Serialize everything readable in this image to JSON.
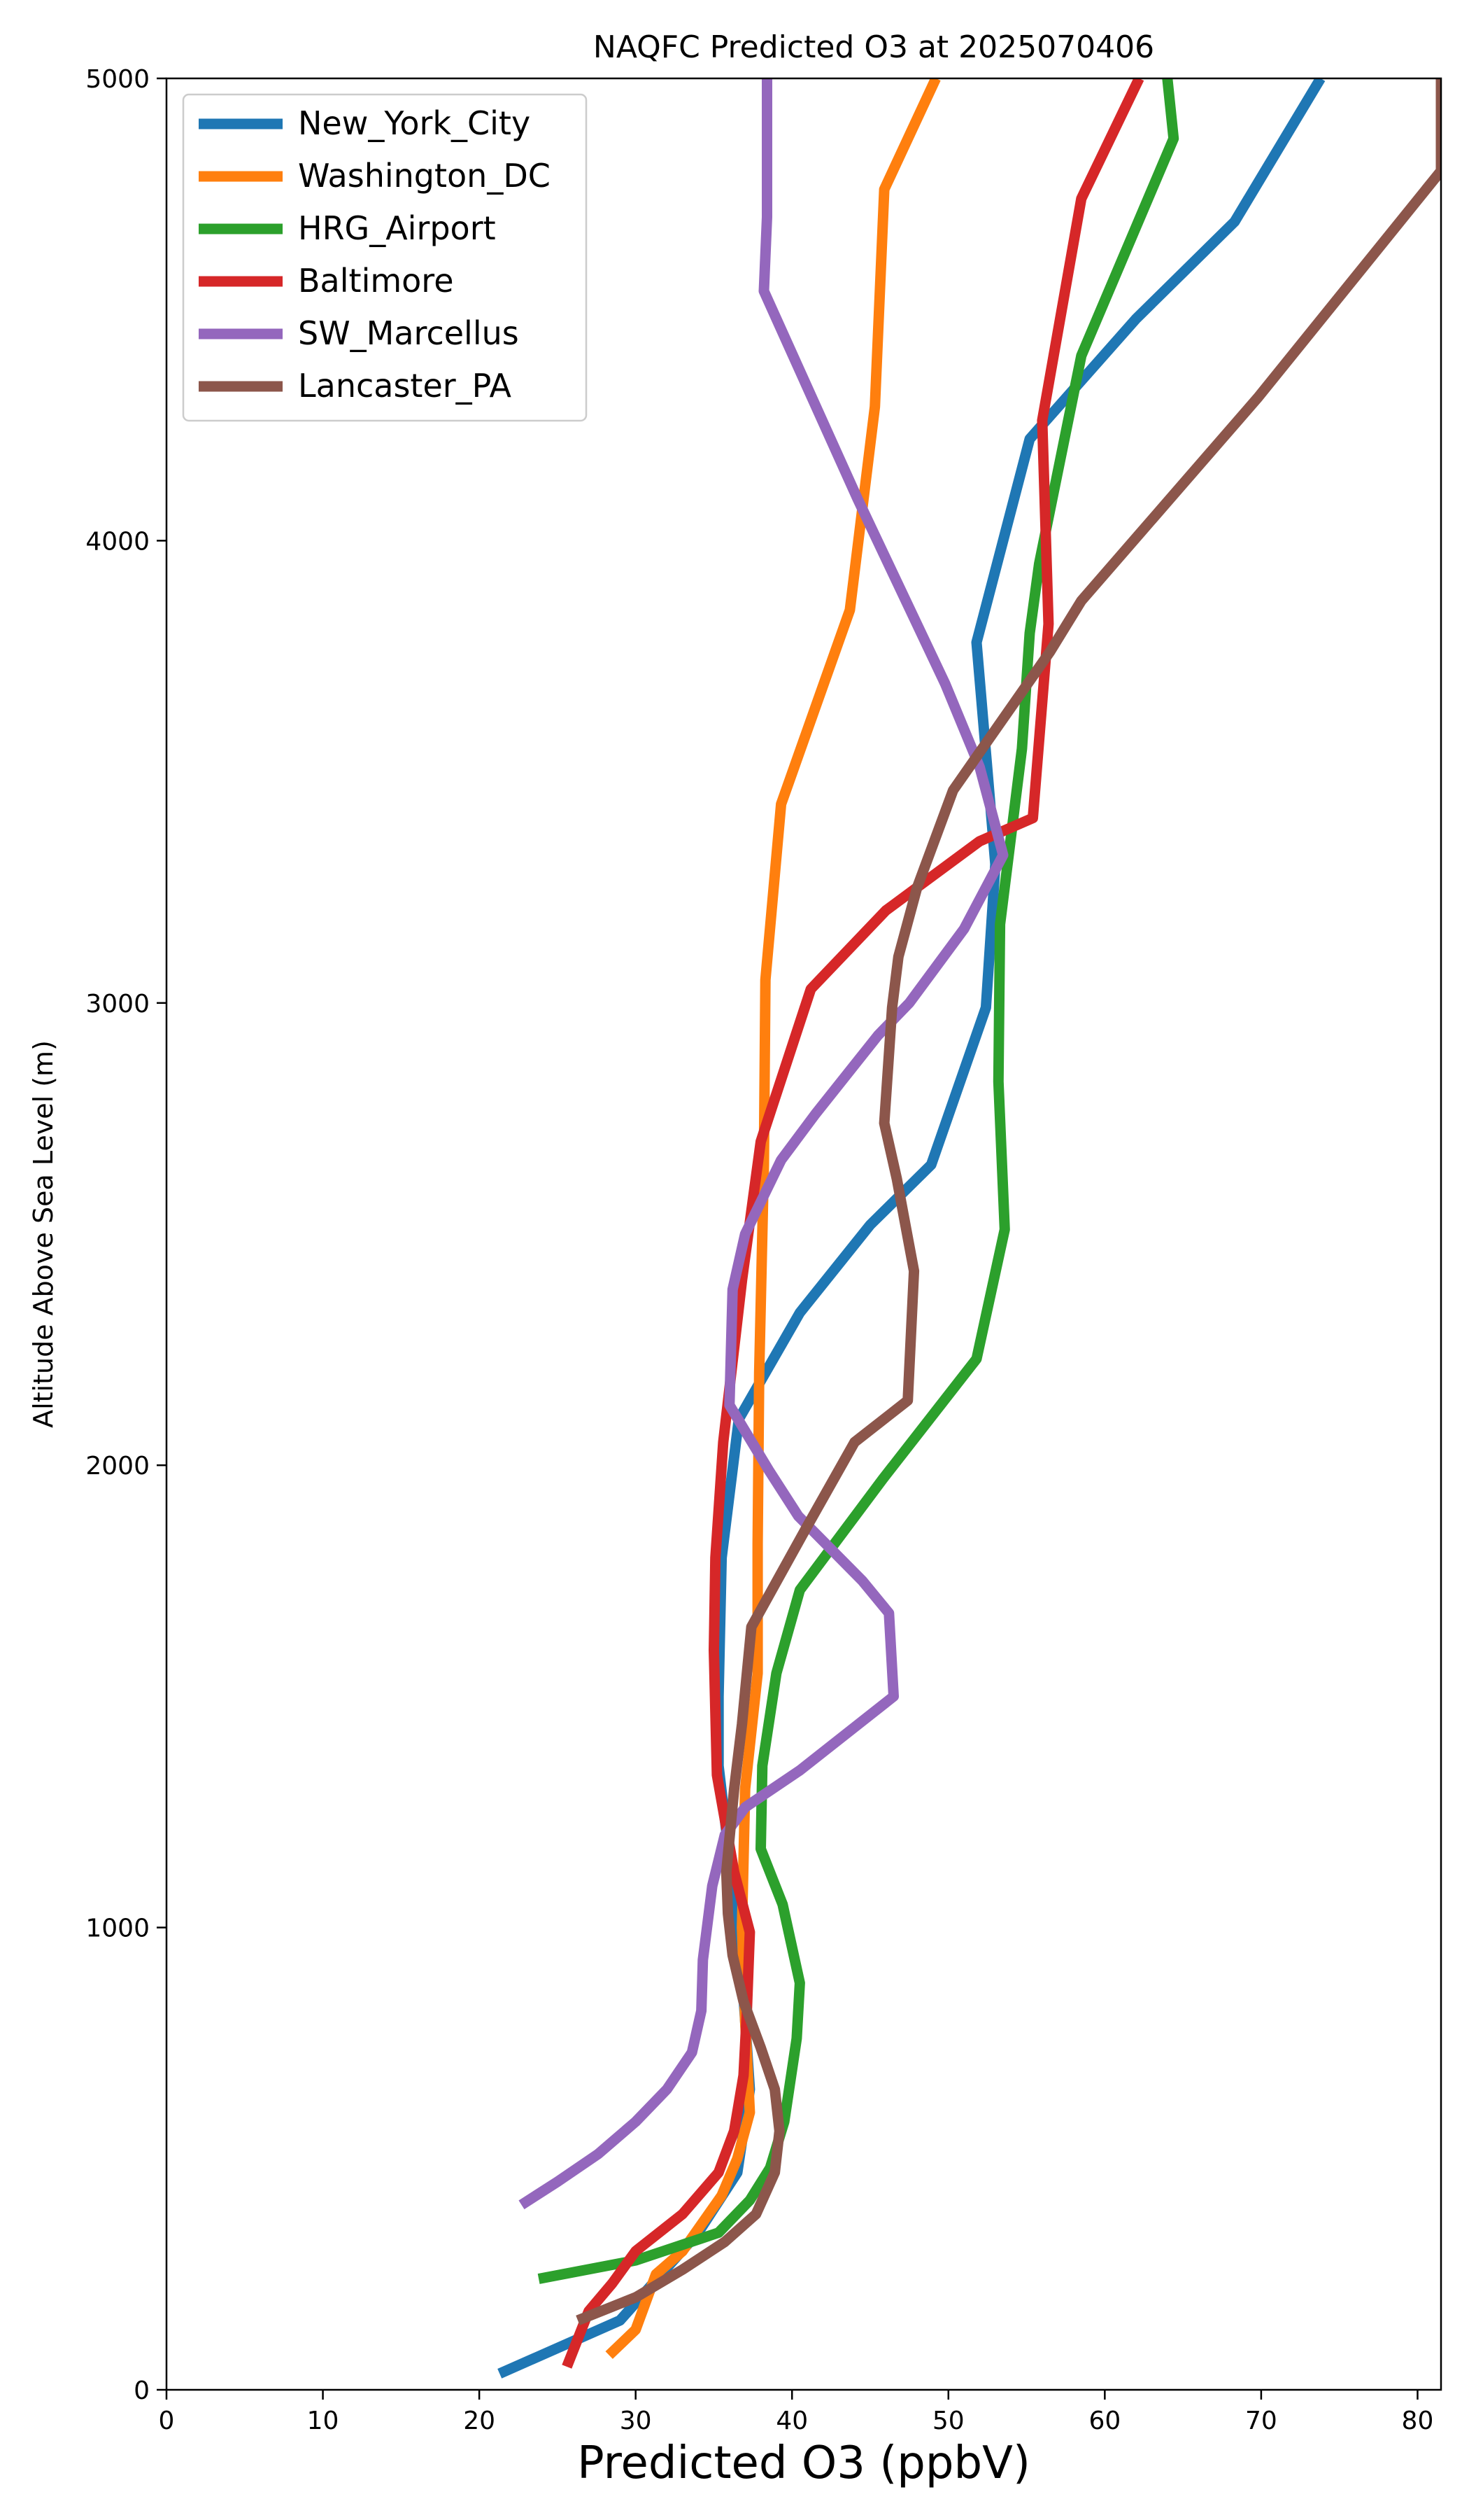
{
  "chart_data": {
    "type": "line",
    "title": "NAQFC Predicted O3 at 2025070406",
    "xlabel": "Predicted O3 (ppbV)",
    "ylabel": "Altitude Above Sea Level (m)",
    "xlim": [
      0,
      81.5
    ],
    "ylim": [
      0,
      5000
    ],
    "xticks": [
      0,
      10,
      20,
      30,
      40,
      50,
      60,
      70,
      80
    ],
    "yticks": [
      0,
      1000,
      2000,
      3000,
      4000,
      5000
    ],
    "grid": false,
    "legend_position": "upper left",
    "series": [
      {
        "name": "New_York_City",
        "color": "#1f77b4",
        "points": [
          [
            21.3,
            35
          ],
          [
            29.0,
            150
          ],
          [
            34,
            340
          ],
          [
            36.5,
            470
          ],
          [
            37.3,
            650
          ],
          [
            36.8,
            900
          ],
          [
            36.0,
            1150
          ],
          [
            35.3,
            1350
          ],
          [
            35.3,
            1500
          ],
          [
            35.5,
            1800
          ],
          [
            36.6,
            2100
          ],
          [
            40.5,
            2330
          ],
          [
            45,
            2520
          ],
          [
            48.9,
            2650
          ],
          [
            52.4,
            2990
          ],
          [
            53,
            3300
          ],
          [
            51.8,
            3780
          ],
          [
            55.2,
            4220
          ],
          [
            62,
            4480
          ],
          [
            68.3,
            4690
          ],
          [
            73.8,
            5000
          ]
        ]
      },
      {
        "name": "Washington_DC",
        "color": "#ff7f0e",
        "points": [
          [
            28.3,
            75
          ],
          [
            30,
            130
          ],
          [
            31.3,
            250
          ],
          [
            33,
            300
          ],
          [
            35.5,
            420
          ],
          [
            36.5,
            500
          ],
          [
            37.3,
            600
          ],
          [
            37,
            800
          ],
          [
            36.8,
            1000
          ],
          [
            37,
            1300
          ],
          [
            37.8,
            1550
          ],
          [
            37.8,
            1700
          ],
          [
            37.8,
            1830
          ],
          [
            37.9,
            2200
          ],
          [
            38.2,
            2650
          ],
          [
            38.3,
            3050
          ],
          [
            39.3,
            3430
          ],
          [
            43.7,
            3850
          ],
          [
            45.3,
            4290
          ],
          [
            45.9,
            4760
          ],
          [
            49.2,
            5000
          ]
        ]
      },
      {
        "name": "HRG_Airport",
        "color": "#2ca02c",
        "points": [
          [
            23.8,
            240
          ],
          [
            30,
            280
          ],
          [
            35.3,
            340
          ],
          [
            37.3,
            410
          ],
          [
            38.6,
            480
          ],
          [
            39.5,
            580
          ],
          [
            40.3,
            760
          ],
          [
            40.5,
            880
          ],
          [
            39.4,
            1050
          ],
          [
            38.0,
            1170
          ],
          [
            38.1,
            1350
          ],
          [
            39,
            1550
          ],
          [
            40.5,
            1730
          ],
          [
            45.8,
            1970
          ],
          [
            51.8,
            2230
          ],
          [
            53.6,
            2510
          ],
          [
            53.2,
            2830
          ],
          [
            53.3,
            3170
          ],
          [
            54.7,
            3550
          ],
          [
            55.2,
            3800
          ],
          [
            55.8,
            3950
          ],
          [
            58.5,
            4400
          ],
          [
            64.4,
            4870
          ],
          [
            64.0,
            5000
          ]
        ]
      },
      {
        "name": "Baltimore",
        "color": "#d62728",
        "points": [
          [
            25.6,
            50
          ],
          [
            27.0,
            170
          ],
          [
            28.5,
            230
          ],
          [
            30,
            300
          ],
          [
            33,
            380
          ],
          [
            35.3,
            470
          ],
          [
            36.3,
            560
          ],
          [
            36.9,
            680
          ],
          [
            37.1,
            810
          ],
          [
            37.3,
            990
          ],
          [
            36.3,
            1120
          ],
          [
            35.2,
            1330
          ],
          [
            35.0,
            1600
          ],
          [
            35.1,
            1800
          ],
          [
            35.6,
            2050
          ],
          [
            36.8,
            2400
          ],
          [
            38.0,
            2700
          ],
          [
            41.2,
            3030
          ],
          [
            46,
            3200
          ],
          [
            52,
            3350
          ],
          [
            55.4,
            3400
          ],
          [
            56.4,
            3820
          ],
          [
            56.0,
            4260
          ],
          [
            58.5,
            4740
          ],
          [
            62.2,
            5000
          ]
        ]
      },
      {
        "name": "SW_Marcellus",
        "color": "#9467bd",
        "points": [
          [
            22.7,
            400
          ],
          [
            25,
            450
          ],
          [
            27.6,
            510
          ],
          [
            30,
            580
          ],
          [
            32,
            650
          ],
          [
            33.6,
            730
          ],
          [
            34.2,
            820
          ],
          [
            34.3,
            930
          ],
          [
            34.9,
            1090
          ],
          [
            35.7,
            1200
          ],
          [
            37,
            1260
          ],
          [
            40.5,
            1340
          ],
          [
            46.5,
            1500
          ],
          [
            46.2,
            1680
          ],
          [
            44.5,
            1750
          ],
          [
            40.4,
            1890
          ],
          [
            38.5,
            1990
          ],
          [
            36.0,
            2130
          ],
          [
            36.2,
            2380
          ],
          [
            37,
            2500
          ],
          [
            39.3,
            2660
          ],
          [
            41.5,
            2760
          ],
          [
            45.5,
            2930
          ],
          [
            47.5,
            3000
          ],
          [
            51,
            3160
          ],
          [
            53.5,
            3320
          ],
          [
            52,
            3510
          ],
          [
            49.8,
            3690
          ],
          [
            44.2,
            4090
          ],
          [
            38.2,
            4540
          ],
          [
            38.4,
            4700
          ],
          [
            38.4,
            5000
          ]
        ]
      },
      {
        "name": "Lancaster_PA",
        "color": "#8c564b",
        "points": [
          [
            26.3,
            150
          ],
          [
            30,
            200
          ],
          [
            33,
            260
          ],
          [
            35.7,
            320
          ],
          [
            37.7,
            380
          ],
          [
            38.9,
            470
          ],
          [
            39.2,
            560
          ],
          [
            38.9,
            650
          ],
          [
            38,
            740
          ],
          [
            36.9,
            840
          ],
          [
            36.2,
            940
          ],
          [
            35.9,
            1030
          ],
          [
            35.8,
            1120
          ],
          [
            36.3,
            1300
          ],
          [
            36.8,
            1440
          ],
          [
            37.4,
            1650
          ],
          [
            41,
            1870
          ],
          [
            44,
            2050
          ],
          [
            47.4,
            2140
          ],
          [
            47.8,
            2420
          ],
          [
            46.7,
            2620
          ],
          [
            45.9,
            2740
          ],
          [
            46.4,
            2990
          ],
          [
            46.8,
            3100
          ],
          [
            48,
            3250
          ],
          [
            50.3,
            3460
          ],
          [
            56.5,
            3760
          ],
          [
            58.5,
            3870
          ],
          [
            69.8,
            4310
          ],
          [
            81.5,
            4800
          ],
          [
            81.5,
            5000
          ]
        ]
      }
    ]
  }
}
